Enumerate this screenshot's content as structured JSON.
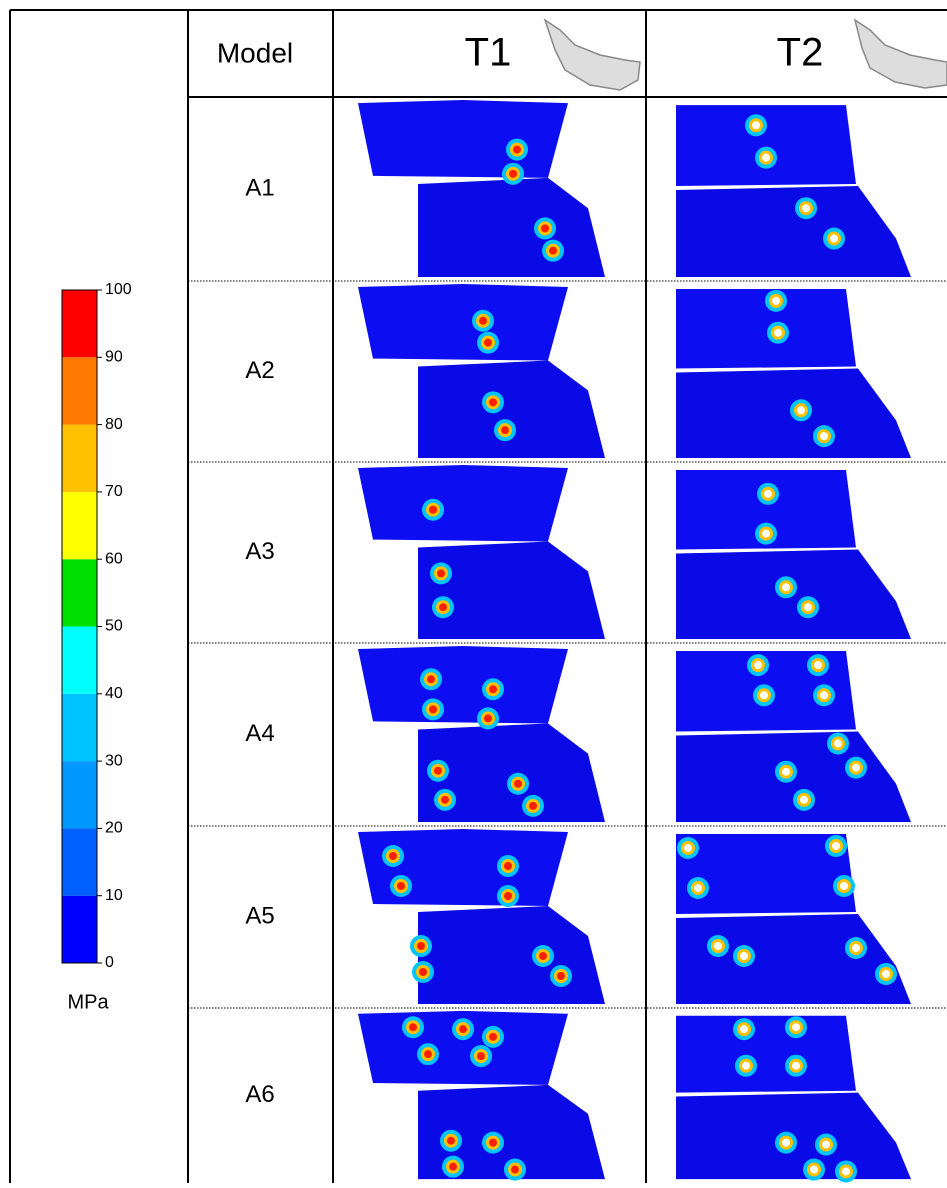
{
  "header": {
    "model": "Model",
    "columns": [
      "T1",
      "T2"
    ]
  },
  "rows": [
    {
      "model": "A1"
    },
    {
      "model": "A2"
    },
    {
      "model": "A3"
    },
    {
      "model": "A4"
    },
    {
      "model": "A5"
    },
    {
      "model": "A6"
    }
  ],
  "colorbar": {
    "ticks": [
      0,
      10,
      20,
      30,
      40,
      50,
      60,
      70,
      80,
      90,
      100
    ],
    "unit": "MPa",
    "colors": [
      "#0000ff",
      "#0060ff",
      "#0098ff",
      "#00c4ff",
      "#00ffff",
      "#00e000",
      "#ffff00",
      "#ffc000",
      "#ff7800",
      "#ff0000"
    ]
  }
}
